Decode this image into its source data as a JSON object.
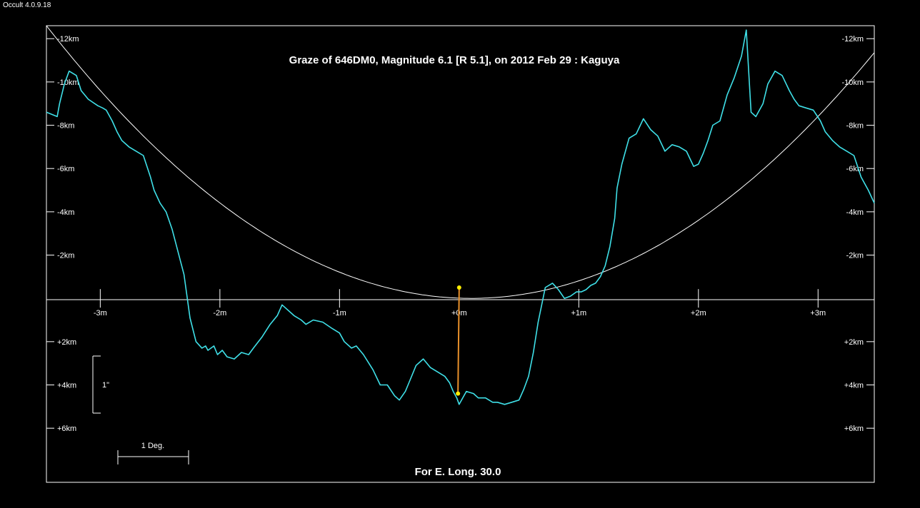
{
  "app": {
    "version": "Occult 4.0.9.18"
  },
  "chart_data": {
    "type": "line",
    "title": "Graze of  646DM0,  Magnitude 6.1 [R 5.1],  on 2012 Feb 29  :  Kaguya",
    "footer": "For E. Long. 30.0",
    "xlabel": "",
    "ylabel": "",
    "xlim": [
      -3.45,
      3.47
    ],
    "ylim": [
      -12.6,
      8.5
    ],
    "y_reversed": true,
    "grid": false,
    "x_ticks": [
      {
        "value": -3,
        "label": "-3m"
      },
      {
        "value": -2,
        "label": "-2m"
      },
      {
        "value": -1,
        "label": "-1m"
      },
      {
        "value": 0,
        "label": "+0m"
      },
      {
        "value": 1,
        "label": "+1m"
      },
      {
        "value": 2,
        "label": "+2m"
      },
      {
        "value": 3,
        "label": "+3m"
      }
    ],
    "y_ticks": [
      {
        "value": -12,
        "label": "-12km"
      },
      {
        "value": -10,
        "label": "-10km"
      },
      {
        "value": -8,
        "label": "-8km"
      },
      {
        "value": -6,
        "label": "-6km"
      },
      {
        "value": -4,
        "label": "-4km"
      },
      {
        "value": -2,
        "label": "-2km"
      },
      {
        "value": 2,
        "label": "+2km"
      },
      {
        "value": 4,
        "label": "+4km"
      },
      {
        "value": 6,
        "label": "+6km"
      }
    ],
    "scale_bars": {
      "vertical_label": "1\"",
      "horizontal_label": "1 Deg."
    },
    "colors": {
      "background": "#000000",
      "axes": "#ffffff",
      "profile": "#3fe0e8",
      "limit_curve": "#ffffff",
      "event_line": "#e8902a",
      "event_dots": "#ffee00"
    },
    "series": [
      {
        "id": "lunar-profile",
        "x": [
          -3.45,
          -3.36,
          -3.34,
          -3.3,
          -3.26,
          -3.2,
          -3.16,
          -3.1,
          -3.02,
          -2.98,
          -2.95,
          -2.9,
          -2.86,
          -2.82,
          -2.76,
          -2.7,
          -2.64,
          -2.58,
          -2.55,
          -2.5,
          -2.45,
          -2.4,
          -2.3,
          -2.25,
          -2.2,
          -2.15,
          -2.12,
          -2.1,
          -2.05,
          -2.02,
          -1.98,
          -1.94,
          -1.88,
          -1.82,
          -1.76,
          -1.72,
          -1.65,
          -1.58,
          -1.52,
          -1.48,
          -1.44,
          -1.38,
          -1.32,
          -1.28,
          -1.22,
          -1.14,
          -1.06,
          -1.0,
          -0.96,
          -0.9,
          -0.86,
          -0.8,
          -0.72,
          -0.66,
          -0.6,
          -0.54,
          -0.5,
          -0.45,
          -0.42,
          -0.36,
          -0.3,
          -0.24,
          -0.18,
          -0.12,
          -0.08,
          -0.05,
          -0.02,
          0.0,
          0.03,
          0.06,
          0.12,
          0.16,
          0.22,
          0.28,
          0.32,
          0.38,
          0.44,
          0.5,
          0.54,
          0.58,
          0.62,
          0.66,
          0.72,
          0.78,
          0.83,
          0.88,
          0.93,
          0.98,
          1.02,
          1.06,
          1.1,
          1.14,
          1.18,
          1.22,
          1.26,
          1.3,
          1.32,
          1.36,
          1.42,
          1.48,
          1.54,
          1.6,
          1.66,
          1.72,
          1.78,
          1.84,
          1.9,
          1.96,
          2.0,
          2.04,
          2.08,
          2.12,
          2.18,
          2.24,
          2.3,
          2.36,
          2.4,
          2.44,
          2.48,
          2.54,
          2.58,
          2.64,
          2.7,
          2.76,
          2.8,
          2.84,
          2.9,
          2.96,
          3.02,
          3.06,
          3.12,
          3.18,
          3.24,
          3.3,
          3.36,
          3.42,
          3.47
        ],
        "y": [
          -8.6,
          -8.4,
          -9.0,
          -9.9,
          -10.5,
          -10.3,
          -9.6,
          -9.2,
          -8.9,
          -8.8,
          -8.7,
          -8.2,
          -7.7,
          -7.3,
          -7.0,
          -6.8,
          -6.6,
          -5.6,
          -5.0,
          -4.4,
          -4.0,
          -3.2,
          -1.1,
          0.9,
          2.0,
          2.3,
          2.2,
          2.4,
          2.2,
          2.6,
          2.4,
          2.7,
          2.8,
          2.5,
          2.6,
          2.3,
          1.8,
          1.2,
          0.8,
          0.3,
          0.5,
          0.8,
          1.0,
          1.2,
          1.0,
          1.1,
          1.4,
          1.6,
          2.0,
          2.3,
          2.2,
          2.6,
          3.3,
          4.0,
          4.0,
          4.5,
          4.7,
          4.3,
          3.9,
          3.1,
          2.8,
          3.2,
          3.4,
          3.6,
          3.9,
          4.3,
          4.6,
          4.9,
          4.6,
          4.3,
          4.4,
          4.6,
          4.6,
          4.8,
          4.8,
          4.9,
          4.8,
          4.7,
          4.2,
          3.6,
          2.5,
          1.1,
          -0.5,
          -0.7,
          -0.4,
          0.0,
          -0.1,
          -0.3,
          -0.3,
          -0.4,
          -0.6,
          -0.7,
          -1.0,
          -1.5,
          -2.4,
          -3.7,
          -5.1,
          -6.2,
          -7.4,
          -7.6,
          -8.3,
          -7.8,
          -7.5,
          -6.8,
          -7.1,
          -7.0,
          -6.8,
          -6.1,
          -6.2,
          -6.7,
          -7.3,
          -8.0,
          -8.2,
          -9.4,
          -10.2,
          -11.2,
          -12.4,
          -8.6,
          -8.4,
          -9.0,
          -9.9,
          -10.5,
          -10.3,
          -9.6,
          -9.2,
          -8.9,
          -8.8,
          -8.7,
          -8.2,
          -7.7,
          -7.3,
          -7.0,
          -6.8,
          -6.6,
          -5.6,
          -5.0,
          -4.4
        ]
      },
      {
        "id": "limit-curve",
        "type": "parabola",
        "vertex": [
          0.1,
          0.0
        ],
        "passes_through": [
          -3.45,
          -12.6
        ]
      }
    ],
    "event_line": {
      "x_top": 0.0,
      "y_top": -0.5,
      "x_bottom": -0.01,
      "y_bottom": 4.4
    }
  }
}
